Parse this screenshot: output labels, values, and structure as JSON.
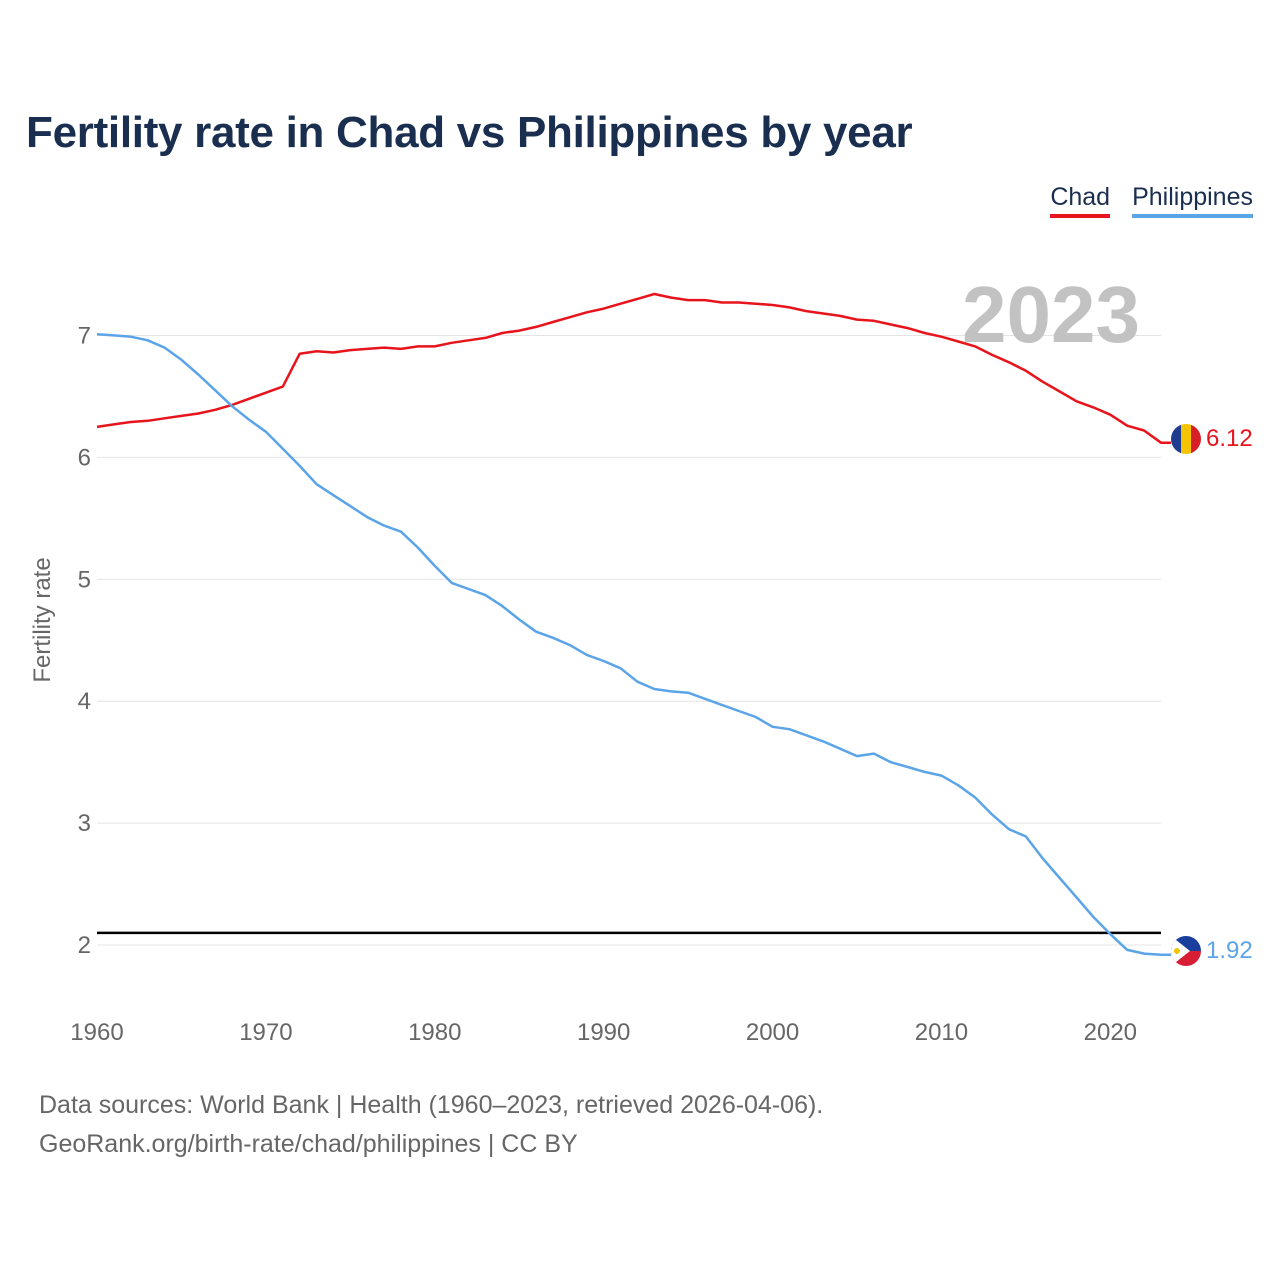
{
  "chart_data": {
    "type": "line",
    "title": "Fertility rate in Chad vs Philippines by year",
    "ylabel": "Fertility rate",
    "xlabel": "",
    "xlim": [
      1960,
      2023
    ],
    "ylim": [
      1.5,
      7.75
    ],
    "x_ticks": [
      "1960",
      "1970",
      "1980",
      "1990",
      "2000",
      "2010",
      "2020"
    ],
    "y_ticks": [
      "2",
      "3",
      "4",
      "5",
      "6",
      "7"
    ],
    "year_label": "2023",
    "reference_line": {
      "value": 2.1,
      "color": "#000000"
    },
    "x": [
      1960,
      1961,
      1962,
      1963,
      1964,
      1965,
      1966,
      1967,
      1968,
      1969,
      1970,
      1971,
      1972,
      1973,
      1974,
      1975,
      1976,
      1977,
      1978,
      1979,
      1980,
      1981,
      1982,
      1983,
      1984,
      1985,
      1986,
      1987,
      1988,
      1989,
      1990,
      1991,
      1992,
      1993,
      1994,
      1995,
      1996,
      1997,
      1998,
      1999,
      2000,
      2001,
      2002,
      2003,
      2004,
      2005,
      2006,
      2007,
      2008,
      2009,
      2010,
      2011,
      2012,
      2013,
      2014,
      2015,
      2016,
      2017,
      2018,
      2019,
      2020,
      2021,
      2022,
      2023
    ],
    "series": [
      {
        "name": "Chad",
        "color": "#e8141c",
        "end_label": "6.12",
        "values": [
          6.25,
          6.27,
          6.29,
          6.3,
          6.32,
          6.34,
          6.36,
          6.39,
          6.43,
          6.48,
          6.53,
          6.58,
          6.85,
          6.87,
          6.86,
          6.88,
          6.89,
          6.9,
          6.89,
          6.91,
          6.91,
          6.94,
          6.96,
          6.98,
          7.02,
          7.04,
          7.07,
          7.11,
          7.15,
          7.19,
          7.22,
          7.26,
          7.3,
          7.34,
          7.31,
          7.29,
          7.29,
          7.27,
          7.27,
          7.26,
          7.25,
          7.23,
          7.2,
          7.18,
          7.16,
          7.13,
          7.12,
          7.09,
          7.06,
          7.02,
          6.99,
          6.95,
          6.91,
          6.84,
          6.78,
          6.71,
          6.62,
          6.54,
          6.46,
          6.41,
          6.35,
          6.26,
          6.22,
          6.12
        ]
      },
      {
        "name": "Philippines",
        "color": "#5ba4e8",
        "end_label": "1.92",
        "values": [
          7.01,
          7.0,
          6.99,
          6.96,
          6.9,
          6.8,
          6.68,
          6.55,
          6.42,
          6.31,
          6.21,
          6.07,
          5.93,
          5.78,
          5.69,
          5.6,
          5.51,
          5.44,
          5.39,
          5.26,
          5.11,
          4.97,
          4.92,
          4.87,
          4.78,
          4.67,
          4.57,
          4.52,
          4.46,
          4.38,
          4.33,
          4.27,
          4.16,
          4.1,
          4.08,
          4.07,
          4.02,
          3.97,
          3.92,
          3.87,
          3.79,
          3.77,
          3.72,
          3.67,
          3.61,
          3.55,
          3.57,
          3.5,
          3.46,
          3.42,
          3.39,
          3.31,
          3.21,
          3.07,
          2.95,
          2.89,
          2.71,
          2.55,
          2.39,
          2.23,
          2.09,
          1.96,
          1.93,
          1.92
        ]
      }
    ]
  },
  "footer": {
    "sources": "Data sources: World Bank | Health (1960–2023, retrieved 2026-04-06).",
    "attribution": "GeoRank.org/birth-rate/chad/philippines | CC BY"
  }
}
